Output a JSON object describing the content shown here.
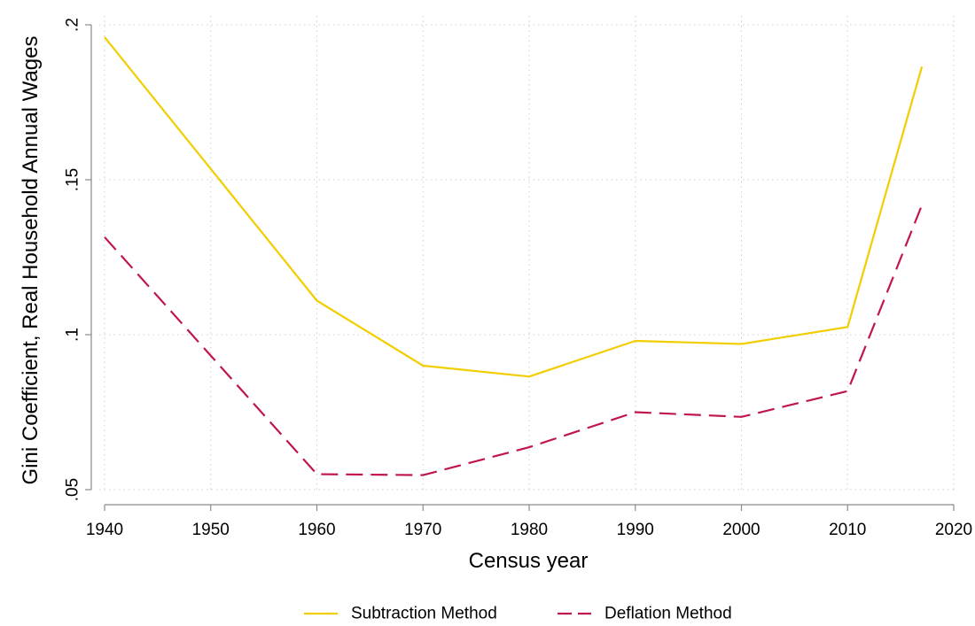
{
  "chart_data": {
    "type": "line",
    "title": "",
    "xlabel": "Census year",
    "ylabel": "Gini Coefficient, Real Household Annual Wages",
    "xlim": [
      1940,
      2020
    ],
    "ylim": [
      0.05,
      0.2
    ],
    "x_ticks": [
      1940,
      1950,
      1960,
      1970,
      1980,
      1990,
      2000,
      2010,
      2020
    ],
    "x_tick_labels": [
      "1940",
      "1950",
      "1960",
      "1970",
      "1980",
      "1990",
      "2000",
      "2010",
      "2020"
    ],
    "y_ticks": [
      0.05,
      0.1,
      0.15,
      0.2
    ],
    "y_tick_labels": [
      ".05",
      ".1",
      ".15",
      ".2"
    ],
    "grid": true,
    "legend_position": "bottom",
    "series": [
      {
        "name": "Subtraction Method",
        "color": "#f2cd00",
        "style": "solid",
        "x": [
          1940,
          1960,
          1970,
          1980,
          1990,
          2000,
          2010,
          2017
        ],
        "values": [
          0.196,
          0.111,
          0.09,
          0.0865,
          0.098,
          0.097,
          0.1025,
          0.1865
        ]
      },
      {
        "name": "Deflation Method",
        "color": "#c0174b",
        "style": "dashed",
        "x": [
          1940,
          1960,
          1970,
          1980,
          1990,
          2000,
          2010,
          2017
        ],
        "values": [
          0.1315,
          0.055,
          0.0547,
          0.0637,
          0.075,
          0.0735,
          0.0818,
          0.1418
        ]
      }
    ]
  }
}
